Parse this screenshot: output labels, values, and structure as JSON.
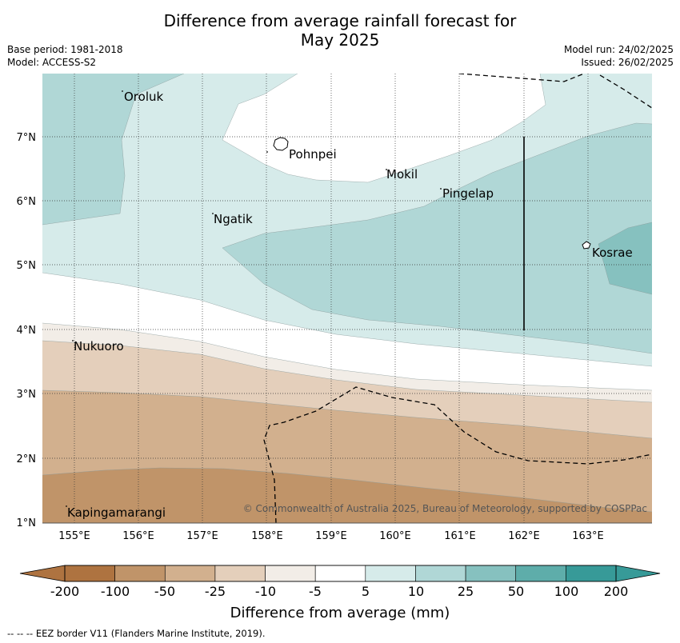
{
  "title_line1": "Difference from average rainfall forecast for",
  "title_line2": "May 2025",
  "meta": {
    "base_period": "Base period: 1981-2018",
    "model": "Model: ACCESS-S2",
    "model_run": "Model run: 24/02/2025",
    "issued": "Issued: 26/02/2025"
  },
  "map": {
    "lat_labels": [
      "7°N",
      "6°N",
      "5°N",
      "4°N",
      "3°N",
      "2°N",
      "1°N"
    ],
    "lon_labels": [
      "155°E",
      "156°E",
      "157°E",
      "158°E",
      "159°E",
      "160°E",
      "161°E",
      "162°E",
      "163°E"
    ],
    "places": [
      "Oroluk",
      "Pohnpei",
      "Mokil",
      "Pingelap",
      "Ngatik",
      "Kosrae",
      "Nukuoro",
      "Kapingamarangi"
    ],
    "copyright": "© Commonwealth of Australia 2025, Bureau of Meteorology, supported by COSPPac"
  },
  "colorbar": {
    "ticks": [
      "-200",
      "-100",
      "-50",
      "-25",
      "-10",
      "-5",
      "5",
      "10",
      "25",
      "50",
      "100",
      "200"
    ],
    "colors": [
      "#ae7340",
      "#c09469",
      "#d2b08e",
      "#e4cfbb",
      "#f2ede7",
      "#ffffff",
      "#d6ebea",
      "#b0d7d6",
      "#86c1bf",
      "#5eadaa",
      "#379a98"
    ],
    "label": "Difference from average (mm)"
  },
  "footer": "--  --  -- EEZ border V11 (Flanders Marine Institute, 2019)."
}
